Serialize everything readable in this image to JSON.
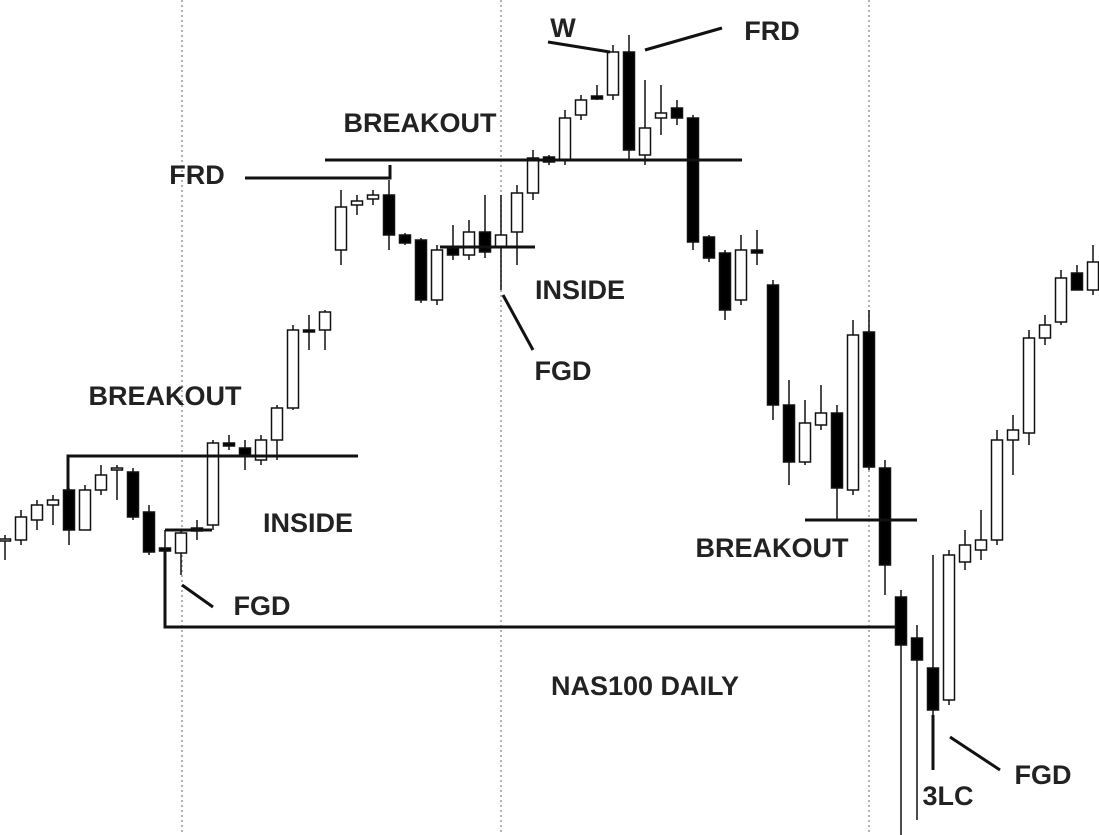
{
  "chart_data": {
    "type": "candlestick",
    "title": "NAS100 DAILY",
    "ylim": [
      0,
      835
    ],
    "up_color": "#ffffff",
    "down_color": "#000000",
    "open": [
      294,
      295,
      315,
      330,
      345,
      305,
      345,
      365,
      363,
      323,
      287,
      282,
      304,
      310,
      392,
      387,
      375,
      395,
      427,
      505,
      505,
      585,
      630,
      636,
      640,
      600,
      595,
      535,
      587,
      580,
      603,
      588,
      603,
      642,
      678,
      675,
      720,
      739,
      740,
      783,
      680,
      717,
      727,
      717,
      598,
      582,
      535,
      585,
      550,
      430,
      373,
      410,
      422,
      345,
      503,
      367,
      238,
      197,
      167,
      135,
      273,
      285,
      295,
      395,
      402,
      497,
      513,
      562,
      545
    ],
    "high": [
      300,
      325,
      335,
      340,
      347,
      350,
      370,
      370,
      367,
      330,
      305,
      305,
      315,
      395,
      400,
      395,
      400,
      430,
      510,
      520,
      525,
      645,
      640,
      645,
      655,
      602,
      597,
      590,
      610,
      615,
      640,
      640,
      650,
      685,
      680,
      725,
      740,
      750,
      790,
      800,
      755,
      750,
      735,
      720,
      600,
      585,
      600,
      605,
      555,
      455,
      435,
      450,
      430,
      515,
      525,
      375,
      245,
      210,
      280,
      285,
      305,
      325,
      405,
      420,
      505,
      520,
      565,
      570,
      590
    ],
    "low": [
      275,
      290,
      305,
      310,
      290,
      305,
      340,
      335,
      315,
      280,
      275,
      260,
      295,
      305,
      385,
      365,
      370,
      375,
      425,
      485,
      485,
      570,
      620,
      630,
      585,
      590,
      532,
      530,
      575,
      575,
      577,
      545,
      570,
      635,
      670,
      670,
      715,
      735,
      735,
      675,
      670,
      700,
      710,
      585,
      573,
      515,
      530,
      570,
      415,
      350,
      370,
      405,
      315,
      340,
      365,
      240,
      0,
      15,
      115,
      130,
      265,
      275,
      290,
      360,
      390,
      490,
      510,
      545,
      540
    ],
    "close": [
      296,
      318,
      330,
      335,
      305,
      345,
      360,
      367,
      318,
      283,
      284,
      302,
      307,
      392,
      389,
      380,
      395,
      427,
      505,
      503,
      523,
      628,
      634,
      640,
      600,
      592,
      535,
      585,
      580,
      603,
      583,
      600,
      642,
      677,
      673,
      717,
      735,
      736,
      783,
      685,
      707,
      722,
      717,
      593,
      577,
      525,
      585,
      582,
      430,
      373,
      412,
      422,
      347,
      500,
      368,
      270,
      190,
      175,
      125,
      280,
      290,
      295,
      395,
      405,
      497,
      510,
      557,
      545,
      573
    ],
    "annotations": [
      "W",
      "FRD",
      "BREAKOUT",
      "FRD",
      "INSIDE",
      "FGD",
      "BREAKOUT",
      "INSIDE",
      "FGD",
      "BREAKOUT",
      "3LC",
      "FGD"
    ]
  }
}
